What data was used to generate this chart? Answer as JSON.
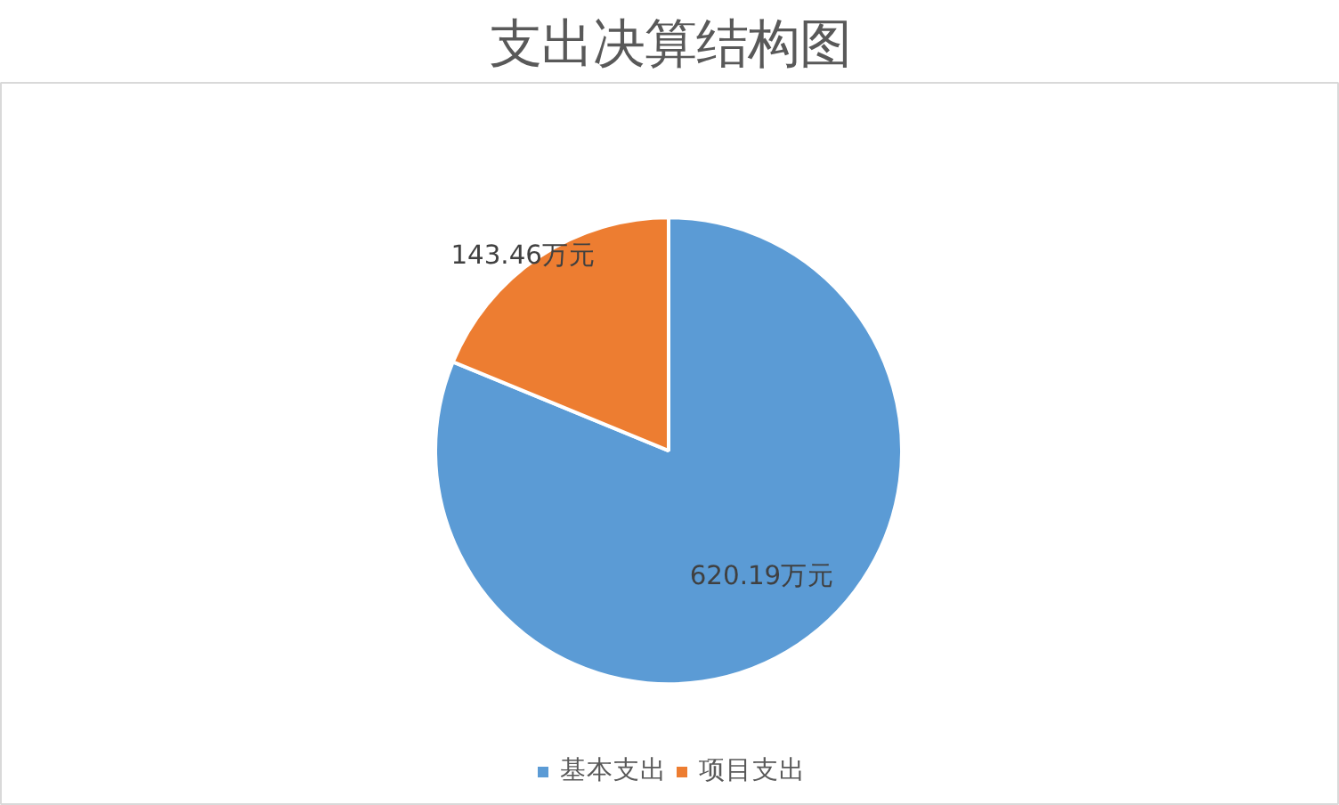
{
  "chart_data": {
    "type": "pie",
    "title": "支出决算结构图",
    "categories": [
      "基本支出",
      "项目支出"
    ],
    "values": [
      620.19,
      143.46
    ],
    "colors": [
      "#5b9bd5",
      "#ed7d31"
    ],
    "value_labels": [
      "620.19万元",
      "143.46万元"
    ],
    "legend": "bottom"
  }
}
